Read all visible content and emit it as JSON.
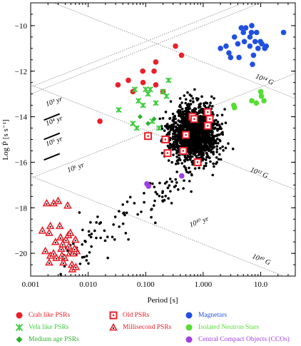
{
  "chart_data": {
    "type": "scatter",
    "title": "",
    "xlabel": "Period [s]",
    "ylabel": "Log Ṗ [s s⁻¹]",
    "xscale": "log",
    "xlim": [
      0.001,
      40
    ],
    "ylim": [
      -21,
      -9
    ],
    "x_ticks": [
      "0.001",
      "0.010",
      "0.100",
      "1.000",
      "10.0"
    ],
    "y_ticks": [
      "-10",
      "-12",
      "-14",
      "-16",
      "-18",
      "-20"
    ],
    "series": [
      {
        "name": "Crab like PSRs",
        "color": "#e8202a",
        "marker": "circle",
        "points": [
          [
            0.016,
            -14.2
          ],
          [
            0.033,
            -12.6
          ],
          [
            0.05,
            -12.4
          ],
          [
            0.06,
            -12.9
          ],
          [
            0.089,
            -12.0
          ],
          [
            0.09,
            -12.5
          ],
          [
            0.15,
            -11.6
          ],
          [
            0.15,
            -12.6
          ],
          [
            0.2,
            -12.9
          ],
          [
            0.33,
            -10.9
          ],
          [
            0.42,
            -11.3
          ],
          [
            0.14,
            -12.0
          ]
        ]
      },
      {
        "name": "Vela like PSRs",
        "color": "#3ecc3e",
        "marker": "x",
        "points": [
          [
            0.034,
            -13.7
          ],
          [
            0.065,
            -12.8
          ],
          [
            0.075,
            -13.3
          ],
          [
            0.1,
            -12.8
          ],
          [
            0.11,
            -13.0
          ],
          [
            0.12,
            -12.8
          ],
          [
            0.15,
            -13.4
          ],
          [
            0.2,
            -12.9
          ],
          [
            0.23,
            -13.1
          ],
          [
            0.25,
            -12.4
          ],
          [
            0.09,
            -13.5
          ],
          [
            0.13,
            -14.2
          ],
          [
            0.06,
            -14.3
          ],
          [
            0.17,
            -14.5
          ],
          [
            0.07,
            -14.5
          ]
        ]
      },
      {
        "name": "Medium age PSRs",
        "color": "#2fb02f",
        "marker": "diamond",
        "points": [
          [
            0.08,
            -14.0
          ],
          [
            0.11,
            -14.3
          ],
          [
            0.14,
            -14.1
          ]
        ]
      },
      {
        "name": "Old PSRs",
        "color": "#e8202a",
        "marker": "square",
        "points": [
          [
            0.11,
            -14.85
          ],
          [
            0.22,
            -15.0
          ],
          [
            0.24,
            -15.6
          ],
          [
            0.5,
            -14.8
          ],
          [
            0.65,
            -14.0
          ],
          [
            0.7,
            -14.1
          ],
          [
            1.2,
            -14.4
          ],
          [
            1.3,
            -14.1
          ],
          [
            0.8,
            -16.0
          ],
          [
            1.2,
            -13.8
          ],
          [
            0.45,
            -15.5
          ]
        ]
      },
      {
        "name": "Millisecond PSRs",
        "color": "#e8202a",
        "marker": "triangle",
        "points": [
          [
            0.0016,
            -19.0
          ],
          [
            0.0019,
            -17.8
          ],
          [
            0.0021,
            -19.1
          ],
          [
            0.0022,
            -18.8
          ],
          [
            0.0025,
            -17.8
          ],
          [
            0.0027,
            -19.5
          ],
          [
            0.003,
            -17.7
          ],
          [
            0.0032,
            -18.8
          ],
          [
            0.0034,
            -19.8
          ],
          [
            0.0035,
            -20.1
          ],
          [
            0.0028,
            -20.2
          ],
          [
            0.0022,
            -20.1
          ],
          [
            0.0018,
            -19.9
          ],
          [
            0.0041,
            -19.4
          ],
          [
            0.0045,
            -19.2
          ],
          [
            0.0046,
            -19.7
          ],
          [
            0.0048,
            -20.0
          ],
          [
            0.0052,
            -20.5
          ],
          [
            0.0055,
            -20.0
          ],
          [
            0.006,
            -19.4
          ],
          [
            0.0063,
            -19.9
          ],
          [
            0.0053,
            -20.7
          ],
          [
            0.0061,
            -20.6
          ],
          [
            0.0039,
            -20.2
          ],
          [
            0.0036,
            -19.6
          ],
          [
            0.0021,
            -20.4
          ],
          [
            0.0044,
            -17.9
          ],
          [
            0.0049,
            -19.1
          ],
          [
            0.0037,
            -20.4
          ],
          [
            0.0025,
            -20.0
          ],
          [
            0.0058,
            -19.8
          ],
          [
            0.0033,
            -19.3
          ]
        ]
      },
      {
        "name": "Magnetars",
        "color": "#2050e0",
        "marker": "circle",
        "points": [
          [
            2.0,
            -11.0
          ],
          [
            2.5,
            -10.9
          ],
          [
            2.8,
            -11.2
          ],
          [
            3.5,
            -10.5
          ],
          [
            4.0,
            -10.8
          ],
          [
            4.2,
            -11.4
          ],
          [
            5.2,
            -10.7
          ],
          [
            5.5,
            -10.1
          ],
          [
            6.5,
            -10.9
          ],
          [
            6.9,
            -10.3
          ],
          [
            7.5,
            -11.3
          ],
          [
            8.0,
            -10.7
          ],
          [
            8.5,
            -10.3
          ],
          [
            9.0,
            -11.0
          ],
          [
            9.9,
            -10.7
          ],
          [
            11.8,
            -11.0
          ],
          [
            12.5,
            -10.9
          ],
          [
            7.0,
            -10.0
          ],
          [
            5.0,
            -10.3
          ],
          [
            6.5,
            -10.5
          ],
          [
            10.5,
            -10.8
          ],
          [
            3.0,
            -11.4
          ],
          [
            25.0,
            -10.3
          ],
          [
            7.2,
            -11.7
          ],
          [
            4.6,
            -10.1
          ]
        ]
      },
      {
        "name": "Isolated Neutron Stars",
        "color": "#55dd33",
        "marker": "circle",
        "points": [
          [
            3.4,
            -13.5
          ],
          [
            7.0,
            -13.3
          ],
          [
            8.4,
            -13.4
          ],
          [
            10.3,
            -13.1
          ],
          [
            11.4,
            -13.3
          ],
          [
            10.0,
            -12.9
          ],
          [
            3.5,
            -13.6
          ]
        ]
      },
      {
        "name": "Central Compact Objects (CCOs)",
        "color": "#a040e0",
        "marker": "circle",
        "points": [
          [
            0.105,
            -16.95
          ],
          [
            0.112,
            -17.05
          ],
          [
            0.424,
            -16.6
          ]
        ]
      }
    ],
    "age_lines": [
      "10³ yr",
      "10⁴ yr",
      "10⁵ yr",
      "10⁶ yr",
      "10¹⁰ yr"
    ],
    "field_lines": [
      "10¹⁴ G",
      "10¹² G",
      "10¹⁰ G"
    ]
  },
  "legend_items": [
    {
      "name": "Crab like PSRs",
      "color": "#e8202a",
      "marker": "circle"
    },
    {
      "name": "Old PSRs",
      "color": "#e8202a",
      "marker": "square"
    },
    {
      "name": "Magnetars",
      "color": "#2050e0",
      "marker": "circle"
    },
    {
      "name": "Vela like PSRs",
      "color": "#3ecc3e",
      "marker": "x"
    },
    {
      "name": "Millisecond PSRs",
      "color": "#e8202a",
      "marker": "triangle"
    },
    {
      "name": "Isolated Neutron Stars",
      "color": "#55dd33",
      "marker": "circle"
    },
    {
      "name": "Medium age PSRs",
      "color": "#2fb02f",
      "marker": "diamond"
    },
    {
      "name": "Central Compact Objects (CCOs)",
      "color": "#a040e0",
      "marker": "circle"
    }
  ]
}
